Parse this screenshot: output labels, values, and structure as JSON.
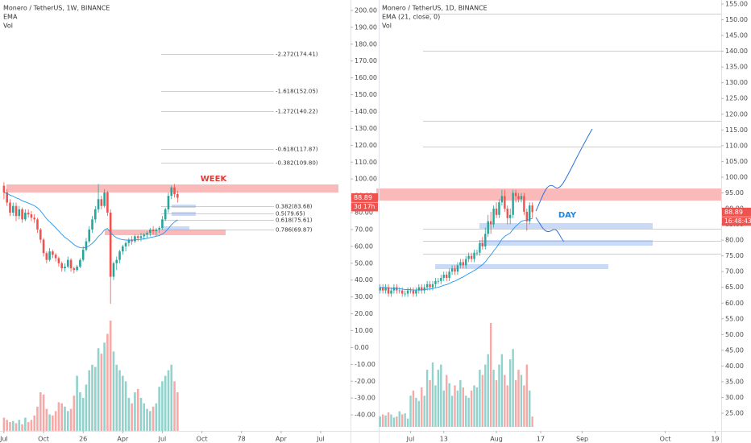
{
  "chart_data": [
    {
      "type": "candlestick",
      "title": "Monero / TetherUS, 1W, BINANCE",
      "indicators": [
        "EMA",
        "Vol"
      ],
      "open": [
        96,
        92,
        86,
        80,
        84,
        78,
        82,
        76,
        80,
        79,
        77,
        76,
        70,
        64,
        56,
        52,
        57,
        55,
        53,
        50,
        47,
        48,
        52,
        47,
        46,
        48,
        52,
        58,
        63,
        70,
        76,
        82,
        88,
        84,
        92,
        80,
        42,
        50,
        52,
        57,
        60,
        62,
        64,
        63,
        66,
        65,
        66,
        67,
        68,
        70,
        69,
        70,
        71,
        76,
        82,
        90,
        95,
        91
      ],
      "high": [
        98,
        94,
        88,
        86,
        86,
        84,
        83,
        82,
        82,
        81,
        79,
        77,
        71,
        65,
        57,
        59,
        58,
        56,
        54,
        51,
        50,
        54,
        53,
        48,
        49,
        53,
        60,
        65,
        72,
        78,
        84,
        97,
        90,
        94,
        93,
        82,
        51,
        54,
        58,
        61,
        63,
        65,
        66,
        67,
        67,
        68,
        68,
        69,
        71,
        72,
        71,
        72,
        78,
        83,
        92,
        96,
        97,
        93
      ],
      "low": [
        88,
        84,
        78,
        78,
        75,
        76,
        74,
        75,
        77,
        75,
        74,
        68,
        62,
        54,
        50,
        51,
        53,
        51,
        48,
        45,
        45,
        47,
        45,
        44,
        45,
        47,
        51,
        57,
        62,
        68,
        74,
        80,
        82,
        83,
        78,
        26,
        40,
        46,
        50,
        55,
        57,
        60,
        61,
        62,
        63,
        63,
        64,
        65,
        66,
        67,
        66,
        68,
        70,
        75,
        80,
        88,
        89,
        86
      ],
      "close": [
        92,
        86,
        80,
        84,
        78,
        82,
        76,
        80,
        79,
        77,
        76,
        70,
        64,
        56,
        52,
        57,
        55,
        53,
        50,
        47,
        48,
        52,
        47,
        46,
        48,
        52,
        58,
        63,
        70,
        76,
        82,
        88,
        84,
        92,
        80,
        42,
        50,
        52,
        57,
        60,
        62,
        64,
        63,
        66,
        65,
        66,
        67,
        68,
        70,
        69,
        70,
        71,
        76,
        82,
        90,
        95,
        91,
        88.89
      ],
      "volume": [
        12,
        10,
        8,
        9,
        7,
        10,
        6,
        12,
        8,
        10,
        14,
        22,
        35,
        33,
        20,
        15,
        14,
        18,
        26,
        25,
        22,
        18,
        20,
        32,
        50,
        35,
        30,
        42,
        55,
        60,
        58,
        75,
        70,
        80,
        88,
        100,
        72,
        60,
        55,
        50,
        45,
        30,
        25,
        35,
        38,
        30,
        25,
        20,
        18,
        22,
        25,
        40,
        45,
        50,
        55,
        60,
        45,
        35
      ],
      "up_color": "#26a69a",
      "down_color": "#ef5350",
      "ema_color": "#2196f3",
      "xlim": [
        -1.3,
        113.8
      ],
      "xticks": [
        {
          "value": 0,
          "label": "Jul"
        },
        {
          "value": 13,
          "label": "Oct"
        },
        26,
        {
          "value": 39,
          "label": "Apr"
        },
        {
          "value": 52,
          "label": "Jul"
        },
        {
          "value": 65,
          "label": "Oct"
        },
        78,
        {
          "value": 91,
          "label": "Apr"
        },
        {
          "value": 104,
          "label": "Jul"
        }
      ],
      "ylim": [
        -49.5,
        206.2
      ],
      "yticks": [
        {
          "value": 200,
          "label": "200.00"
        },
        {
          "value": 190,
          "label": "190.00"
        },
        {
          "value": 180,
          "label": "180.00"
        },
        {
          "value": 170,
          "label": "170.00"
        },
        {
          "value": 160,
          "label": "160.00"
        },
        {
          "value": 150,
          "label": "150.00"
        },
        {
          "value": 140,
          "label": "140.00"
        },
        {
          "value": 130,
          "label": "130.00"
        },
        {
          "value": 120,
          "label": "120.00"
        },
        {
          "value": 110,
          "label": "110.00"
        },
        {
          "value": 100,
          "label": "100.00"
        },
        {
          "value": 90,
          "label": "90.00"
        },
        {
          "value": 80,
          "label": "80.00"
        },
        {
          "value": 70,
          "label": "70.00"
        },
        {
          "value": 60,
          "label": "60.00"
        },
        {
          "value": 50,
          "label": "50.00"
        },
        {
          "value": 40,
          "label": "40.00"
        },
        {
          "value": 30,
          "label": "30.00"
        },
        {
          "value": 20,
          "label": "20.00"
        },
        {
          "value": 10,
          "label": "10.00"
        },
        {
          "value": 0,
          "label": "0.00"
        },
        {
          "value": -10,
          "label": "-10.00"
        },
        {
          "value": -20,
          "label": "-20.00"
        },
        {
          "value": -30,
          "label": "-30.00"
        },
        {
          "value": -40,
          "label": "-40.00"
        }
      ],
      "levels": [
        {
          "value": 174.41,
          "label": "-2.272(174.41)"
        },
        {
          "value": 152.05,
          "label": "-1.618(152.05)"
        },
        {
          "value": 140.22,
          "label": "-1.272(140.22)"
        },
        {
          "value": 117.87,
          "label": "-0.618(117.87)"
        },
        {
          "value": 109.8,
          "label": "-0.382(109.80)"
        },
        {
          "value": 83.68,
          "label": "0.382(83.68)"
        },
        {
          "value": 79.65,
          "label": "0.5(79.65)"
        },
        {
          "value": 75.61,
          "label": "0.618(75.61)"
        },
        {
          "value": 69.87,
          "label": "0.786(69.87)"
        }
      ],
      "annotation": "WEEK",
      "last_price": 88.89,
      "countdown": "3d 17h"
    },
    {
      "type": "candlestick",
      "title": "Monero / TetherUS, 1D, BINANCE",
      "indicators": [
        "EMA (21, close, 0)",
        "Vol"
      ],
      "open": [
        64,
        65,
        64,
        65,
        63,
        64,
        65,
        64,
        64,
        63,
        63,
        64,
        64,
        63,
        64,
        65,
        64,
        65,
        66,
        65,
        66,
        67,
        67,
        68,
        69,
        68,
        70,
        71,
        70,
        72,
        73,
        72,
        74,
        75,
        74,
        76,
        76,
        79,
        78,
        82,
        86,
        85,
        90,
        88,
        92,
        94,
        90,
        87,
        88,
        95,
        94,
        93,
        94,
        89,
        86,
        91
      ],
      "high": [
        66,
        66,
        66,
        66,
        65,
        66,
        66,
        65,
        65,
        64,
        65,
        65,
        65,
        65,
        66,
        66,
        66,
        67,
        67,
        67,
        68,
        68,
        69,
        70,
        70,
        71,
        72,
        72,
        73,
        74,
        74,
        75,
        76,
        76,
        77,
        77,
        80,
        81,
        84,
        88,
        89,
        91,
        92,
        93,
        96,
        96,
        91,
        90,
        96,
        96,
        95,
        95,
        95,
        90,
        92,
        92
      ],
      "low": [
        63,
        63,
        63,
        62,
        62,
        63,
        63,
        63,
        62,
        62,
        62,
        63,
        62,
        62,
        63,
        63,
        63,
        64,
        64,
        64,
        65,
        66,
        66,
        67,
        67,
        67,
        69,
        69,
        69,
        71,
        71,
        71,
        73,
        73,
        73,
        75,
        75,
        77,
        77,
        81,
        82,
        84,
        87,
        87,
        91,
        89,
        85,
        85,
        87,
        92,
        92,
        92,
        88,
        83,
        85,
        87
      ],
      "close": [
        65,
        64,
        65,
        63,
        64,
        65,
        64,
        64,
        63,
        63,
        64,
        64,
        63,
        64,
        65,
        64,
        65,
        66,
        65,
        66,
        67,
        67,
        68,
        69,
        68,
        70,
        71,
        70,
        72,
        73,
        72,
        74,
        75,
        74,
        76,
        76,
        79,
        78,
        82,
        86,
        85,
        90,
        88,
        92,
        94,
        90,
        87,
        88,
        95,
        94,
        93,
        94,
        89,
        86,
        91,
        88.89
      ],
      "volume": [
        10,
        12,
        11,
        14,
        12,
        9,
        10,
        15,
        12,
        13,
        8,
        30,
        35,
        28,
        25,
        38,
        30,
        55,
        45,
        62,
        40,
        55,
        60,
        35,
        50,
        42,
        30,
        40,
        35,
        45,
        38,
        30,
        28,
        35,
        40,
        38,
        55,
        50,
        60,
        70,
        100,
        55,
        45,
        60,
        70,
        50,
        40,
        65,
        75,
        45,
        55,
        50,
        40,
        60,
        35,
        10
      ],
      "up_color": "#26a69a",
      "down_color": "#ef5350",
      "ema_color": "#2196f3",
      "xlim": [
        -0.5,
        123.2
      ],
      "xticks": [
        {
          "value": 11,
          "label": "Jul"
        },
        {
          "value": 23,
          "label": "13"
        },
        {
          "value": 42,
          "label": "Aug"
        },
        {
          "value": 58,
          "label": "17"
        },
        {
          "value": 73,
          "label": "Sep"
        },
        {
          "value": 103,
          "label": "Oct"
        },
        {
          "value": 121,
          "label": "19"
        }
      ],
      "ylim": [
        19.38,
        156.28
      ],
      "yticks": [
        {
          "value": 155,
          "label": "155.00"
        },
        {
          "value": 150,
          "label": "150.00"
        },
        {
          "value": 145,
          "label": "145.00"
        },
        {
          "value": 140,
          "label": "140.00"
        },
        {
          "value": 135,
          "label": "135.00"
        },
        {
          "value": 130,
          "label": "130.00"
        },
        {
          "value": 125,
          "label": "125.00"
        },
        {
          "value": 120,
          "label": "120.00"
        },
        {
          "value": 115,
          "label": "115.00"
        },
        {
          "value": 110,
          "label": "110.00"
        },
        {
          "value": 105,
          "label": "105.00"
        },
        {
          "value": 100,
          "label": "100.00"
        },
        {
          "value": 95,
          "label": "95.00"
        },
        {
          "value": 90,
          "label": "90.00"
        },
        {
          "value": 85,
          "label": "85.00"
        },
        {
          "value": 80,
          "label": "80.00"
        },
        {
          "value": 75,
          "label": "75.00"
        },
        {
          "value": 70,
          "label": "70.00"
        },
        {
          "value": 65,
          "label": "65.00"
        },
        {
          "value": 60,
          "label": "60.00"
        },
        {
          "value": 55,
          "label": "55.00"
        },
        {
          "value": 50,
          "label": "50.00"
        },
        {
          "value": 45,
          "label": "45.00"
        },
        {
          "value": 40,
          "label": "40.00"
        },
        {
          "value": 35,
          "label": "35.00"
        },
        {
          "value": 30,
          "label": "30.00"
        },
        {
          "value": 25,
          "label": "25.00"
        }
      ],
      "levels": [
        152.05,
        140.22,
        117.87,
        109.8,
        83.68,
        79.65,
        75.61
      ],
      "annotation": "DAY",
      "last_price": 88.89,
      "countdown": "16:48:43"
    }
  ]
}
